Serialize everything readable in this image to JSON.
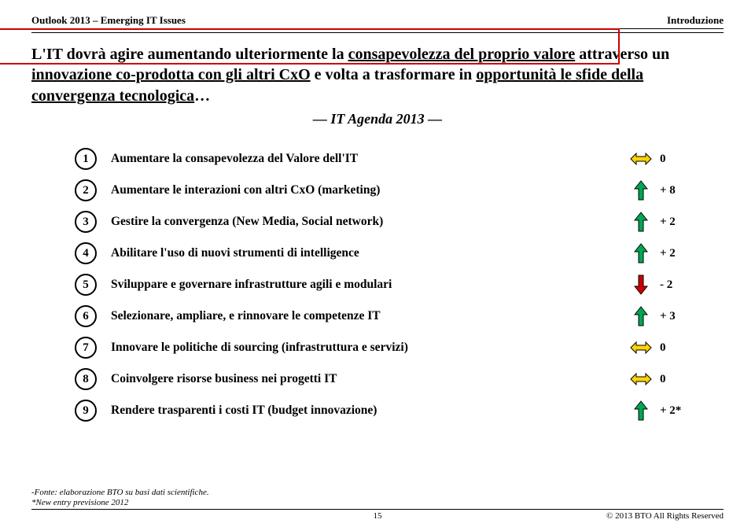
{
  "header": {
    "left": "Outlook 2013 – Emerging IT Issues",
    "right": "Introduzione"
  },
  "intro": {
    "p1a": "L'IT dovrà agire aumentando ulteriormente la ",
    "p1u1": "consapevolezza del proprio valore",
    "p1b": " attraverso un ",
    "p1u2": "innovazione co-prodotta con gli altri CxO",
    "p1c": " e volta a trasformare in ",
    "p1u3": "opportunità le sfide della convergenza tecnologica",
    "p1d": "…"
  },
  "subtitle": "― IT Agenda 2013 ―",
  "items": [
    {
      "n": "1",
      "text": "Aumentare la consapevolezza del Valore dell'IT",
      "kind": "flat",
      "delta": "0"
    },
    {
      "n": "2",
      "text": "Aumentare le interazioni con altri CxO (marketing)",
      "kind": "up",
      "delta": "+ 8"
    },
    {
      "n": "3",
      "text": "Gestire la convergenza (New Media, Social network)",
      "kind": "up",
      "delta": "+ 2"
    },
    {
      "n": "4",
      "text": "Abilitare l'uso di nuovi strumenti di intelligence",
      "kind": "up",
      "delta": "+ 2"
    },
    {
      "n": "5",
      "text": "Sviluppare e governare infrastrutture agili e modulari",
      "kind": "down",
      "delta": "- 2"
    },
    {
      "n": "6",
      "text": "Selezionare, ampliare, e rinnovare le competenze  IT",
      "kind": "up",
      "delta": "+ 3"
    },
    {
      "n": "7",
      "text": "Innovare le politiche di sourcing (infrastruttura e servizi)",
      "kind": "flat",
      "delta": "0"
    },
    {
      "n": "8",
      "text": "Coinvolgere risorse business nei progetti IT",
      "kind": "flat",
      "delta": "0"
    },
    {
      "n": "9",
      "text": "Rendere trasparenti i costi IT (budget innovazione)",
      "kind": "up",
      "delta": "+ 2*"
    }
  ],
  "footnotes": {
    "l1": "-Fonte: elaborazione BTO su basi dati scientifiche.",
    "l2": "*New entry previsione 2012"
  },
  "footer": {
    "page": "15",
    "copyright": "© 2013 BTO All Rights Reserved"
  },
  "colors": {
    "up_fill": "#00a651",
    "down_fill": "#cc0000",
    "flat_fill": "#ffd400",
    "arrow_stroke": "#000000",
    "highlight": "#cc0000"
  }
}
